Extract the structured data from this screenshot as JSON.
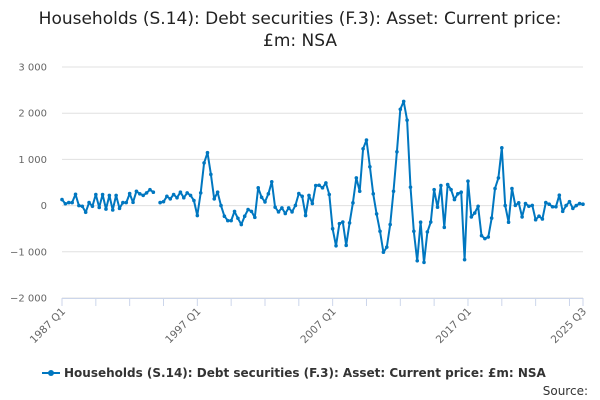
{
  "chart_data": {
    "type": "line",
    "title": "Households (S.14): Debt securities (F.3): Asset: Current price: £m: NSA",
    "xlabel": "",
    "ylabel": "",
    "ylim": [
      -2000,
      3000
    ],
    "yticks": [
      3000,
      2000,
      1000,
      0,
      -1000,
      -2000
    ],
    "ytick_labels": [
      "3 000",
      "2 000",
      "1 000",
      "0",
      "−1 000",
      "−2 000"
    ],
    "xtick_labels": [
      "1987 Q1",
      "1997 Q1",
      "2007 Q1",
      "2017 Q1",
      "2025 Q3"
    ],
    "grid": true,
    "legend_position": "bottom",
    "line_color": "#0077c0",
    "x_first": "1987 Q1",
    "x_last": "2025 Q3",
    "series": [
      {
        "name": "Households (S.14): Debt securities (F.3): Asset: Current price: £m: NSA",
        "values": [
          130,
          40,
          65,
          65,
          245,
          0,
          -15,
          -145,
          65,
          -15,
          240,
          -40,
          240,
          -75,
          220,
          -95,
          220,
          -60,
          65,
          65,
          260,
          70,
          310,
          255,
          220,
          275,
          345,
          290,
          null,
          65,
          85,
          200,
          145,
          240,
          170,
          290,
          170,
          275,
          220,
          110,
          -215,
          275,
          925,
          1145,
          675,
          145,
          290,
          0,
          -230,
          -325,
          -325,
          -125,
          -275,
          -410,
          -230,
          -85,
          -125,
          -255,
          385,
          180,
          80,
          255,
          515,
          -35,
          -135,
          -50,
          -170,
          -50,
          -135,
          5,
          260,
          200,
          -215,
          220,
          45,
          435,
          440,
          385,
          490,
          240,
          -500,
          -870,
          -390,
          -355,
          -860,
          -375,
          60,
          600,
          310,
          1230,
          1420,
          840,
          255,
          -180,
          -555,
          -1010,
          -900,
          -410,
          310,
          1165,
          2085,
          2255,
          1850,
          400,
          -555,
          -1195,
          -360,
          -1230,
          -570,
          -355,
          345,
          -35,
          435,
          -470,
          455,
          345,
          130,
          255,
          290,
          -1170,
          530,
          -245,
          -160,
          -15,
          -650,
          -715,
          -680,
          -270,
          370,
          600,
          1250,
          0,
          -360,
          370,
          5,
          60,
          -245,
          45,
          -15,
          5,
          -305,
          -230,
          -290,
          65,
          30,
          -25,
          -25,
          225,
          -125,
          0,
          85,
          -60,
          0,
          45,
          30
        ]
      }
    ]
  },
  "legend": {
    "label": "Households (S.14): Debt securities (F.3): Asset: Current price: £m: NSA"
  },
  "source": {
    "label": "Source:"
  }
}
